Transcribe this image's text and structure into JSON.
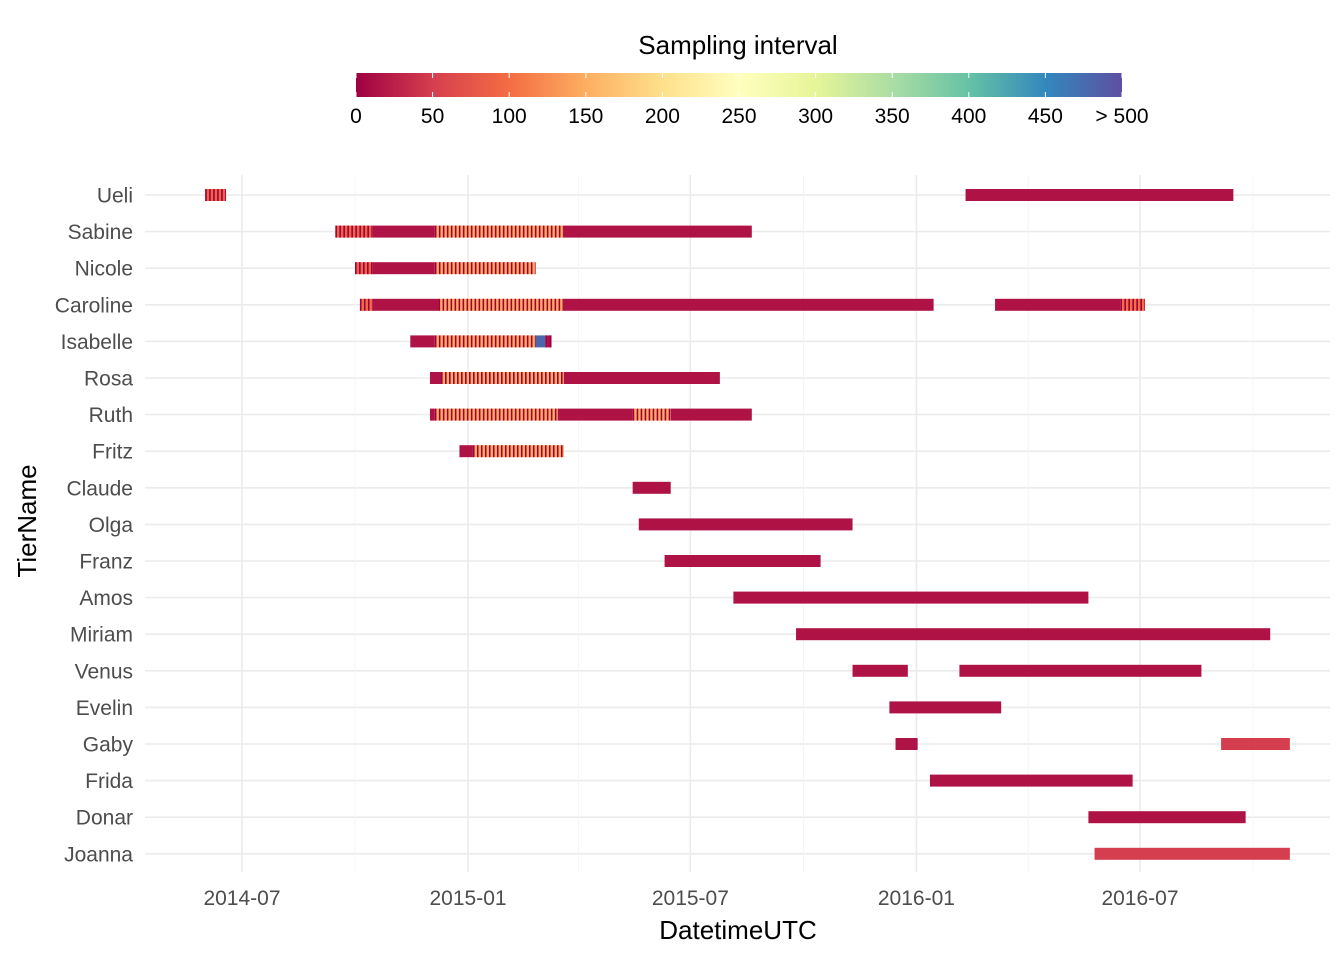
{
  "chart_data": {
    "type": "timeline",
    "title": "",
    "xlabel": "DatetimeUTC",
    "ylabel": "TierName",
    "x_range": [
      "2014-05-01",
      "2016-10-31"
    ],
    "x_ticks": [
      "2014-07",
      "2015-01",
      "2015-07",
      "2016-01",
      "2016-07"
    ],
    "legend": {
      "title": "Sampling interval",
      "position": "top",
      "range": [
        0,
        500
      ],
      "tick_values": [
        0,
        50,
        100,
        150,
        200,
        250,
        300,
        350,
        400,
        450,
        500
      ],
      "tick_labels": [
        "0",
        "50",
        "100",
        "150",
        "200",
        "250",
        "300",
        "350",
        "400",
        "450",
        "> 500"
      ],
      "colors": [
        "#9E0142",
        "#D53E4F",
        "#F46D43",
        "#FDAE61",
        "#FEE08B",
        "#FFFFBF",
        "#E6F598",
        "#ABDDA4",
        "#66C2A5",
        "#3288BD",
        "#5E4FA2"
      ]
    },
    "series": [
      {
        "name": "Ueli",
        "segments": [
          {
            "start": "2014-06-01",
            "end": "2014-06-18",
            "interval": 90,
            "striped": true
          },
          {
            "start": "2016-02-10",
            "end": "2016-09-15",
            "interval": 15
          }
        ]
      },
      {
        "name": "Sabine",
        "segments": [
          {
            "start": "2014-09-15",
            "end": "2014-10-15",
            "interval": 90,
            "striped": true
          },
          {
            "start": "2014-10-15",
            "end": "2014-12-05",
            "interval": 15
          },
          {
            "start": "2014-12-05",
            "end": "2015-03-20",
            "interval": 150,
            "striped": true
          },
          {
            "start": "2015-03-20",
            "end": "2015-08-20",
            "interval": 15
          }
        ]
      },
      {
        "name": "Nicole",
        "segments": [
          {
            "start": "2014-10-01",
            "end": "2014-10-15",
            "interval": 90,
            "striped": true
          },
          {
            "start": "2014-10-15",
            "end": "2014-12-05",
            "interval": 15
          },
          {
            "start": "2014-12-05",
            "end": "2015-02-25",
            "interval": 150,
            "striped": true
          }
        ]
      },
      {
        "name": "Caroline",
        "segments": [
          {
            "start": "2014-10-05",
            "end": "2014-10-15",
            "interval": 100,
            "striped": true
          },
          {
            "start": "2014-10-15",
            "end": "2014-12-08",
            "interval": 15
          },
          {
            "start": "2014-12-08",
            "end": "2015-03-20",
            "interval": 150,
            "striped": true
          },
          {
            "start": "2015-03-20",
            "end": "2016-01-15",
            "interval": 15
          },
          {
            "start": "2016-03-05",
            "end": "2016-06-15",
            "interval": 15
          },
          {
            "start": "2016-06-15",
            "end": "2016-07-05",
            "interval": 100,
            "striped": true
          }
        ]
      },
      {
        "name": "Isabelle",
        "segments": [
          {
            "start": "2014-11-15",
            "end": "2014-12-05",
            "interval": 15
          },
          {
            "start": "2014-12-05",
            "end": "2015-02-25",
            "interval": 150,
            "striped": true
          },
          {
            "start": "2015-02-25",
            "end": "2015-03-05",
            "interval": 480
          },
          {
            "start": "2015-03-05",
            "end": "2015-03-10",
            "interval": 15,
            "striped": true
          }
        ]
      },
      {
        "name": "Rosa",
        "segments": [
          {
            "start": "2014-12-01",
            "end": "2014-12-10",
            "interval": 15
          },
          {
            "start": "2014-12-10",
            "end": "2015-03-20",
            "interval": 150,
            "striped": true
          },
          {
            "start": "2015-03-20",
            "end": "2015-07-25",
            "interval": 15
          }
        ]
      },
      {
        "name": "Ruth",
        "segments": [
          {
            "start": "2014-12-01",
            "end": "2014-12-05",
            "interval": 15
          },
          {
            "start": "2014-12-05",
            "end": "2015-03-15",
            "interval": 150,
            "striped": true
          },
          {
            "start": "2015-03-15",
            "end": "2015-05-15",
            "interval": 15
          },
          {
            "start": "2015-05-15",
            "end": "2015-06-15",
            "interval": 150,
            "striped": true
          },
          {
            "start": "2015-06-15",
            "end": "2015-08-20",
            "interval": 15
          }
        ]
      },
      {
        "name": "Fritz",
        "segments": [
          {
            "start": "2014-12-25",
            "end": "2015-01-05",
            "interval": 15
          },
          {
            "start": "2015-01-05",
            "end": "2015-03-20",
            "interval": 150,
            "striped": true
          }
        ]
      },
      {
        "name": "Claude",
        "segments": [
          {
            "start": "2015-05-15",
            "end": "2015-06-15",
            "interval": 15
          }
        ]
      },
      {
        "name": "Olga",
        "segments": [
          {
            "start": "2015-05-20",
            "end": "2015-11-10",
            "interval": 15
          }
        ]
      },
      {
        "name": "Franz",
        "segments": [
          {
            "start": "2015-06-10",
            "end": "2015-10-15",
            "interval": 15
          }
        ]
      },
      {
        "name": "Amos",
        "segments": [
          {
            "start": "2015-08-05",
            "end": "2016-05-20",
            "interval": 15
          }
        ]
      },
      {
        "name": "Miriam",
        "segments": [
          {
            "start": "2015-09-25",
            "end": "2016-10-15",
            "interval": 15
          }
        ]
      },
      {
        "name": "Venus",
        "segments": [
          {
            "start": "2015-11-10",
            "end": "2015-12-25",
            "interval": 15
          },
          {
            "start": "2016-02-05",
            "end": "2016-08-20",
            "interval": 15
          }
        ]
      },
      {
        "name": "Evelin",
        "segments": [
          {
            "start": "2015-12-10",
            "end": "2016-03-10",
            "interval": 15
          }
        ]
      },
      {
        "name": "Gaby",
        "segments": [
          {
            "start": "2015-12-15",
            "end": "2016-01-02",
            "interval": 15
          },
          {
            "start": "2016-09-05",
            "end": "2016-10-31",
            "interval": 50
          }
        ]
      },
      {
        "name": "Frida",
        "segments": [
          {
            "start": "2016-01-12",
            "end": "2016-06-25",
            "interval": 15
          }
        ]
      },
      {
        "name": "Donar",
        "segments": [
          {
            "start": "2016-05-20",
            "end": "2016-09-25",
            "interval": 15
          }
        ]
      },
      {
        "name": "Joanna",
        "segments": [
          {
            "start": "2016-05-25",
            "end": "2016-10-31",
            "interval": 50
          }
        ]
      }
    ]
  }
}
